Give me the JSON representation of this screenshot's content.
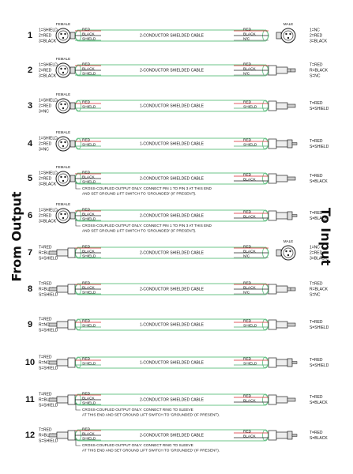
{
  "side_labels": {
    "left": "From Output",
    "right": "To Input"
  },
  "cable_2c": "2-CONDUCTOR SHIELDED CABLE",
  "cable_1c": "1-CONDUCTOR SHIELDED CABLE",
  "connector_labels": {
    "female": "FEMALE",
    "male": "MALE"
  },
  "wire_labels": {
    "red": "RED",
    "black": "BLACK",
    "shield": "SHIELD",
    "nc": "N/C"
  },
  "notes": {
    "xlr": [
      "CROSS-COUPLED OUTPUT ONLY: CONNECT PIN 1 TO PIN 3 AT THIS END",
      "AND SET GROUND LIFT SWITCH TO 'GROUNDED' (IF PRESENT)."
    ],
    "trs": [
      "CROSS-COUPLED OUTPUT ONLY: CONNECT RING TO SLEEVE",
      "AT THIS END AND SET GROUND LIFT SWITCH TO 'GROUNDED' (IF PRESENT)."
    ]
  },
  "rows": [
    {
      "num": "1",
      "left_pins": [
        "1=SHIELD",
        "2=RED",
        "3=BLACK"
      ],
      "left_conn": "xlr_female",
      "cable": "2c",
      "right_conn": "xlr_male",
      "right_pins": [
        "1=NC",
        "2=RED",
        "3=BLACK"
      ],
      "right_wires": [
        "red",
        "black",
        "nc"
      ]
    },
    {
      "num": "2",
      "left_pins": [
        "1=SHIELD",
        "2=RED",
        "3=BLACK"
      ],
      "left_conn": "xlr_female",
      "cable": "2c",
      "right_conn": "trs",
      "right_pins": [
        "T=RED",
        "R=BLACK",
        "S=NC"
      ],
      "right_wires": [
        "red",
        "black",
        "nc"
      ]
    },
    {
      "num": "3",
      "left_pins": [
        "1=SHIELD",
        "2=RED",
        "3=NC"
      ],
      "left_conn": "xlr_female",
      "cable": "1c",
      "right_conn": "ts",
      "right_pins": [
        "T=RED",
        "S=SHIELD"
      ],
      "right_wires": [
        "red",
        "shield"
      ]
    },
    {
      "num": "4",
      "left_pins": [
        "1=SHIELD",
        "2=RED",
        "3=NC"
      ],
      "left_conn": "xlr_female",
      "cable": "1c",
      "right_conn": "rca",
      "right_pins": [
        "T=RED",
        "S=SHIELD"
      ],
      "right_wires": [
        "red",
        "shield"
      ]
    },
    {
      "num": "5",
      "left_pins": [
        "1=SHIELD",
        "2=RED",
        "3=BLACK"
      ],
      "left_conn": "xlr_female",
      "cable": "2c",
      "right_conn": "ts",
      "right_pins": [
        "T=RED",
        "S=BLACK"
      ],
      "right_wires": [
        "red",
        "black"
      ],
      "note": "xlr"
    },
    {
      "num": "6",
      "left_pins": [
        "1=SHIELD",
        "2=RED",
        "3=BLACK"
      ],
      "left_conn": "xlr_female",
      "cable": "2c",
      "right_conn": "rca",
      "right_pins": [
        "T=RED",
        "S=BLACK"
      ],
      "right_wires": [
        "red",
        "black"
      ],
      "note": "xlr"
    },
    {
      "num": "7",
      "left_pins": [
        "T=RED",
        "R=BLACK",
        "S=SHIELD"
      ],
      "left_conn": "trs",
      "cable": "2c",
      "right_conn": "xlr_male",
      "right_pins": [
        "1=NC",
        "2=RED",
        "3=BLACK"
      ],
      "right_wires": [
        "red",
        "black",
        "nc"
      ]
    },
    {
      "num": "8",
      "left_pins": [
        "T=RED",
        "R=BLACK",
        "S=SHIELD"
      ],
      "left_conn": "trs",
      "cable": "2c",
      "right_conn": "trs",
      "right_pins": [
        "T=RED",
        "R=BLACK",
        "S=NC"
      ],
      "right_wires": [
        "red",
        "black",
        "nc"
      ]
    },
    {
      "num": "9",
      "left_pins": [
        "T=RED",
        "R=NC",
        "S=SHIELD"
      ],
      "left_conn": "trs",
      "cable": "1c",
      "right_conn": "ts",
      "right_pins": [
        "T=RED",
        "S=SHIELD"
      ],
      "right_wires": [
        "red",
        "shield"
      ]
    },
    {
      "num": "10",
      "left_pins": [
        "T=RED",
        "R=NC",
        "S=SHIELD"
      ],
      "left_conn": "trs",
      "cable": "1c",
      "right_conn": "rca",
      "right_pins": [
        "T=RED",
        "S=SHIELD"
      ],
      "right_wires": [
        "red",
        "shield"
      ]
    },
    {
      "num": "11",
      "left_pins": [
        "T=RED",
        "R=BLACK",
        "S=SHIELD"
      ],
      "left_conn": "trs",
      "cable": "2c",
      "right_conn": "ts",
      "right_pins": [
        "T=RED",
        "S=BLACK"
      ],
      "right_wires": [
        "red",
        "black"
      ],
      "note": "trs"
    },
    {
      "num": "12",
      "left_pins": [
        "T=RED",
        "R=BLACK",
        "S=SHIELD"
      ],
      "left_conn": "trs",
      "cable": "2c",
      "right_conn": "rca",
      "right_pins": [
        "T=RED",
        "S=BLACK"
      ],
      "right_wires": [
        "red",
        "black"
      ],
      "note": "trs"
    }
  ],
  "colors": {
    "cable": "#6cc48a",
    "cable_fill": "#ffffff",
    "red_wire": "#d7262b",
    "black_wire": "#222222",
    "shield_wire": "#4aa96c",
    "text": "#111111"
  }
}
